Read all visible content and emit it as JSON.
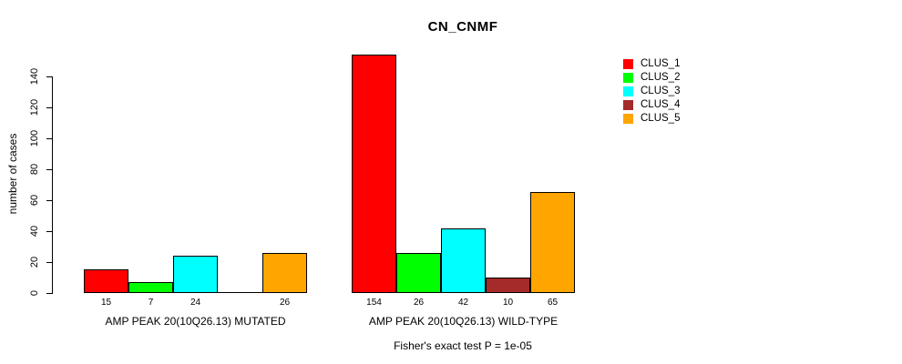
{
  "title": "CN_CNMF",
  "y_axis_label": "number of cases",
  "footer": "Fisher's exact test P = 1e-05",
  "legend": {
    "items": [
      {
        "label": "CLUS_1",
        "color": "#FF0000"
      },
      {
        "label": "CLUS_2",
        "color": "#00FF00"
      },
      {
        "label": "CLUS_3",
        "color": "#00FFFF"
      },
      {
        "label": "CLUS_4",
        "color": "#A52A2A"
      },
      {
        "label": "CLUS_5",
        "color": "#FFA500"
      }
    ]
  },
  "chart_data": {
    "type": "bar",
    "title": "CN_CNMF",
    "ylabel": "number of cases",
    "ylim": [
      0,
      140
    ],
    "yticks": [
      0,
      20,
      40,
      60,
      80,
      100,
      120,
      140
    ],
    "grid": false,
    "legend_position": "top-right",
    "series": [
      "CLUS_1",
      "CLUS_2",
      "CLUS_3",
      "CLUS_4",
      "CLUS_5"
    ],
    "colors": [
      "#FF0000",
      "#00FF00",
      "#00FFFF",
      "#A52A2A",
      "#FFA500"
    ],
    "groups": [
      {
        "label": "AMP PEAK 20(10Q26.13) MUTATED",
        "values": [
          15,
          7,
          24,
          0,
          26
        ],
        "bar_labels": [
          "15",
          "7",
          "24",
          "",
          "26"
        ]
      },
      {
        "label": "AMP PEAK 20(10Q26.13) WILD-TYPE",
        "values": [
          154,
          26,
          42,
          10,
          65
        ],
        "bar_labels": [
          "154",
          "26",
          "42",
          "10",
          "65"
        ]
      }
    ],
    "annotation": "Fisher's exact test P = 1e-05"
  }
}
